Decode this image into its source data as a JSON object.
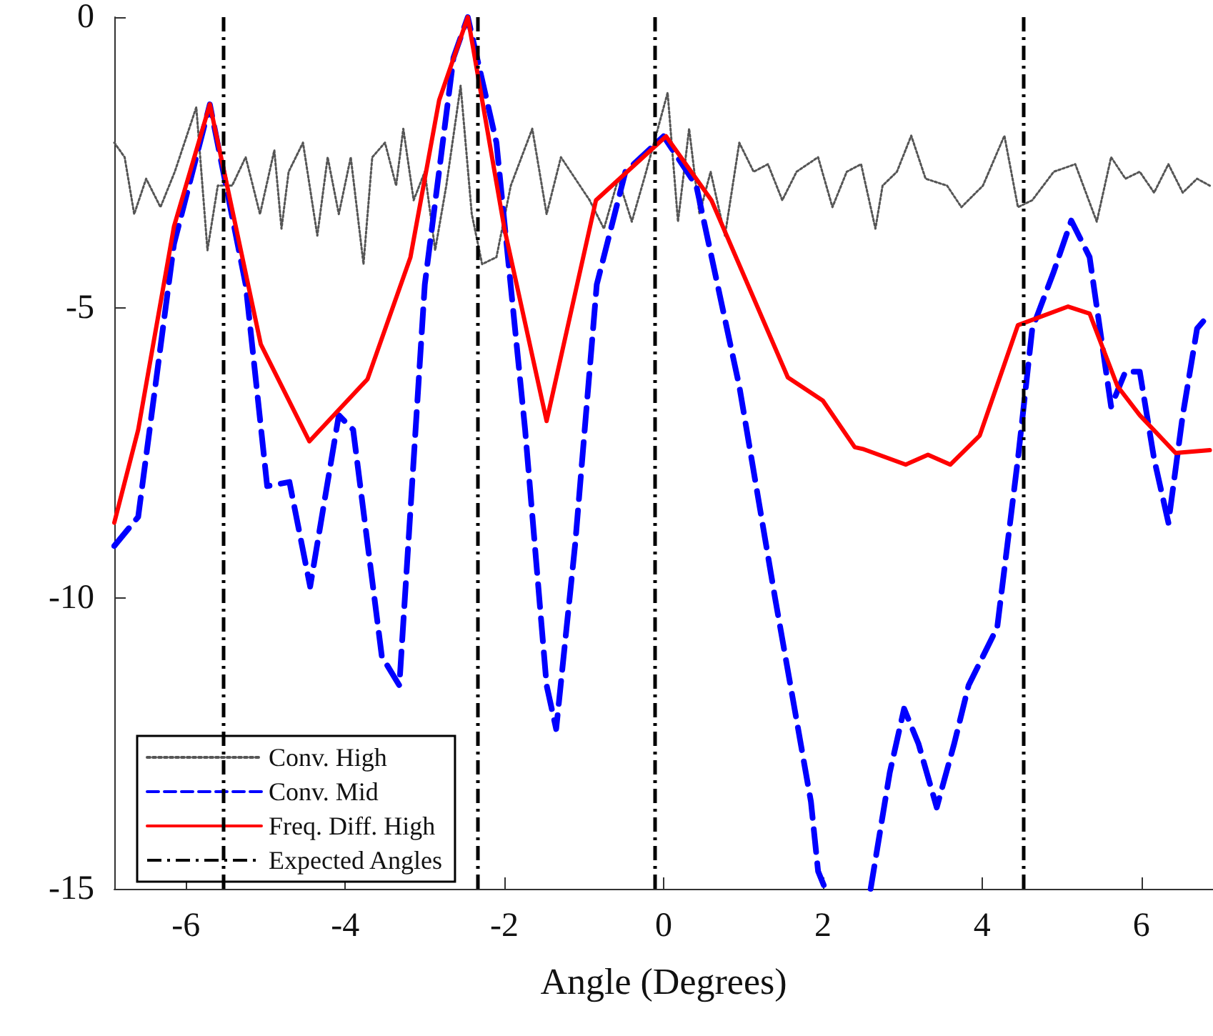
{
  "chart_data": {
    "type": "line",
    "xlabel": "Angle (Degrees)",
    "xlim": [
      -6.9,
      6.9
    ],
    "xticks": [
      -6,
      -4,
      -2,
      0,
      2,
      4,
      6
    ],
    "ylim": [
      -15,
      0
    ],
    "yticks": [
      -15,
      -10,
      -5,
      0
    ],
    "grid": false,
    "legend": "bottom left",
    "marker": "none",
    "series": [
      {
        "name": "Conv. High",
        "color": "#555555",
        "line_style": "dotted",
        "x": [
          -6.9,
          -6.77,
          -6.65,
          -6.5,
          -6.32,
          -6.14,
          -5.87,
          -5.73,
          -5.6,
          -5.42,
          -5.25,
          -5.07,
          -4.89,
          -4.8,
          -4.71,
          -4.53,
          -4.35,
          -4.22,
          -4.08,
          -3.93,
          -3.77,
          -3.66,
          -3.5,
          -3.36,
          -3.27,
          -3.14,
          -3.0,
          -2.87,
          -2.73,
          -2.55,
          -2.41,
          -2.28,
          -2.1,
          -1.92,
          -1.65,
          -1.47,
          -1.29,
          -1.11,
          -0.93,
          -0.75,
          -0.57,
          -0.4,
          -0.22,
          0.05,
          0.18,
          0.32,
          0.45,
          0.59,
          0.77,
          0.95,
          1.13,
          1.31,
          1.49,
          1.67,
          1.94,
          2.12,
          2.3,
          2.48,
          2.66,
          2.75,
          2.93,
          3.11,
          3.29,
          3.56,
          3.74,
          4.01,
          4.28,
          4.45,
          4.63,
          4.9,
          5.17,
          5.44,
          5.62,
          5.8,
          5.98,
          6.16,
          6.34,
          6.52,
          6.7,
          6.86
        ],
        "values": [
          -2.16,
          -2.41,
          -3.39,
          -2.78,
          -3.27,
          -2.66,
          -1.55,
          -4.01,
          -2.9,
          -2.9,
          -2.41,
          -3.39,
          -2.29,
          -3.64,
          -2.66,
          -2.16,
          -3.76,
          -2.41,
          -3.39,
          -2.41,
          -4.25,
          -2.41,
          -2.16,
          -2.9,
          -1.92,
          -3.15,
          -2.66,
          -4.01,
          -2.9,
          -1.18,
          -3.39,
          -4.25,
          -4.13,
          -2.9,
          -1.92,
          -3.39,
          -2.41,
          -2.78,
          -3.15,
          -3.64,
          -2.78,
          -3.52,
          -2.66,
          -1.3,
          -3.52,
          -1.92,
          -3.39,
          -2.66,
          -3.76,
          -2.16,
          -2.66,
          -2.53,
          -3.15,
          -2.66,
          -2.41,
          -3.27,
          -2.66,
          -2.53,
          -3.64,
          -2.9,
          -2.66,
          -2.04,
          -2.78,
          -2.9,
          -3.27,
          -2.9,
          -2.04,
          -3.27,
          -3.15,
          -2.66,
          -2.53,
          -3.52,
          -2.41,
          -2.78,
          -2.66,
          -3.02,
          -2.53,
          -3.02,
          -2.78,
          -2.9
        ]
      },
      {
        "name": "Conv. Mid",
        "color": "#0000ff",
        "line_style": "dashed",
        "x": [
          -6.9,
          -6.6,
          -6.15,
          -5.7,
          -5.25,
          -4.98,
          -4.7,
          -4.44,
          -4.08,
          -3.9,
          -3.54,
          -3.32,
          -3.0,
          -2.64,
          -2.46,
          -2.1,
          -1.74,
          -1.47,
          -1.35,
          -1.11,
          -0.84,
          -0.48,
          0,
          0.41,
          0.95,
          1.4,
          1.85,
          1.94,
          2.03,
          2.3,
          2.6,
          2.84,
          3.02,
          3.2,
          3.43,
          3.65,
          3.83,
          4.19,
          4.45,
          4.63,
          4.9,
          5.12,
          5.35,
          5.62,
          5.8,
          5.98,
          6.16,
          6.34,
          6.52,
          6.7,
          6.86
        ],
        "values": [
          -9.1,
          -8.6,
          -3.9,
          -1.5,
          -4.6,
          -8.07,
          -8.0,
          -9.8,
          -6.85,
          -7.1,
          -11.0,
          -11.5,
          -4.6,
          -0.7,
          0,
          -2.16,
          -7.1,
          -11.5,
          -12.25,
          -9.05,
          -4.6,
          -2.66,
          -2.05,
          -2.9,
          -6.35,
          -10.0,
          -13.5,
          -14.7,
          -15,
          null,
          -15,
          -13.0,
          -11.9,
          -12.5,
          -13.6,
          -12.5,
          -11.5,
          -10.5,
          -7.6,
          -5.36,
          -4.38,
          -3.5,
          -4.13,
          -6.7,
          -6.1,
          -6.1,
          -7.6,
          -8.7,
          -6.85,
          -5.36,
          -5.1
        ]
      },
      {
        "name": "Freq. Diff. High",
        "color": "#ff0000",
        "line_style": "solid",
        "x": [
          -6.9,
          -6.6,
          -6.15,
          -5.7,
          -5.06,
          -4.45,
          -3.72,
          -3.18,
          -2.82,
          -2.46,
          -2.0,
          -1.47,
          -0.85,
          0.03,
          0.6,
          1.56,
          2.0,
          2.4,
          2.5,
          3.04,
          3.32,
          3.6,
          3.97,
          4.45,
          5.08,
          5.35,
          5.7,
          5.98,
          6.43,
          6.86
        ],
        "values": [
          -8.7,
          -7.1,
          -3.6,
          -1.5,
          -5.63,
          -7.3,
          -6.23,
          -4.13,
          -1.43,
          0,
          -3.64,
          -6.95,
          -3.15,
          -2.05,
          -3.15,
          -6.2,
          -6.6,
          -7.4,
          -7.43,
          -7.7,
          -7.53,
          -7.7,
          -7.2,
          -5.3,
          -4.98,
          -5.1,
          -6.35,
          -6.85,
          -7.5,
          -7.45
        ]
      }
    ],
    "ref_lines": [
      {
        "axis": "x",
        "value": -5.53,
        "label": "Expected Angles",
        "color": "#000000",
        "line_style": "dashed"
      },
      {
        "axis": "x",
        "value": -2.34,
        "color": "#000000",
        "line_style": "dashed"
      },
      {
        "axis": "x",
        "value": -0.11,
        "color": "#000000",
        "line_style": "dashed"
      },
      {
        "axis": "x",
        "value": 4.52,
        "color": "#000000",
        "line_style": "dashed"
      }
    ]
  }
}
